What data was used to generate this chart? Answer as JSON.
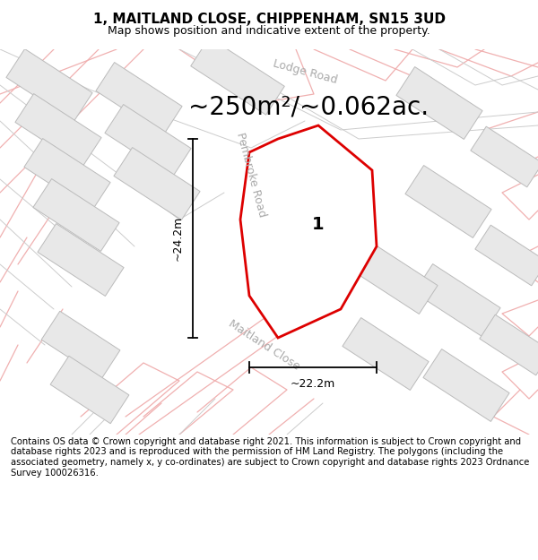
{
  "title_line1": "1, MAITLAND CLOSE, CHIPPENHAM, SN15 3UD",
  "title_line2": "Map shows position and indicative extent of the property.",
  "area_label": "~250m²/~0.062ac.",
  "label_number": "1",
  "dim_vertical": "~24.2m",
  "dim_horizontal": "~22.2m",
  "road_lodge": "Lodge Road",
  "road_pembroke": "Pembroke Road",
  "road_maitland": "Maitland Close",
  "footer": "Contains OS data © Crown copyright and database right 2021. This information is subject to Crown copyright and database rights 2023 and is reproduced with the permission of HM Land Registry. The polygons (including the associated geometry, namely x, y co-ordinates) are subject to Crown copyright and database rights 2023 Ordnance Survey 100026316.",
  "bg_color": "#ffffff",
  "map_bg": "#ffffff",
  "property_color": "#dd0000",
  "building_fc": "#e8e8e8",
  "building_ec": "#bbbbbb",
  "pink_line_color": "#f0b0b0",
  "gray_line_color": "#cccccc",
  "road_label_color": "#aaaaaa",
  "title_fontsize": 11,
  "subtitle_fontsize": 9,
  "area_fontsize": 20,
  "footer_fontsize": 7.2,
  "road_fontsize": 9,
  "number_fontsize": 14,
  "dim_fontsize": 9
}
